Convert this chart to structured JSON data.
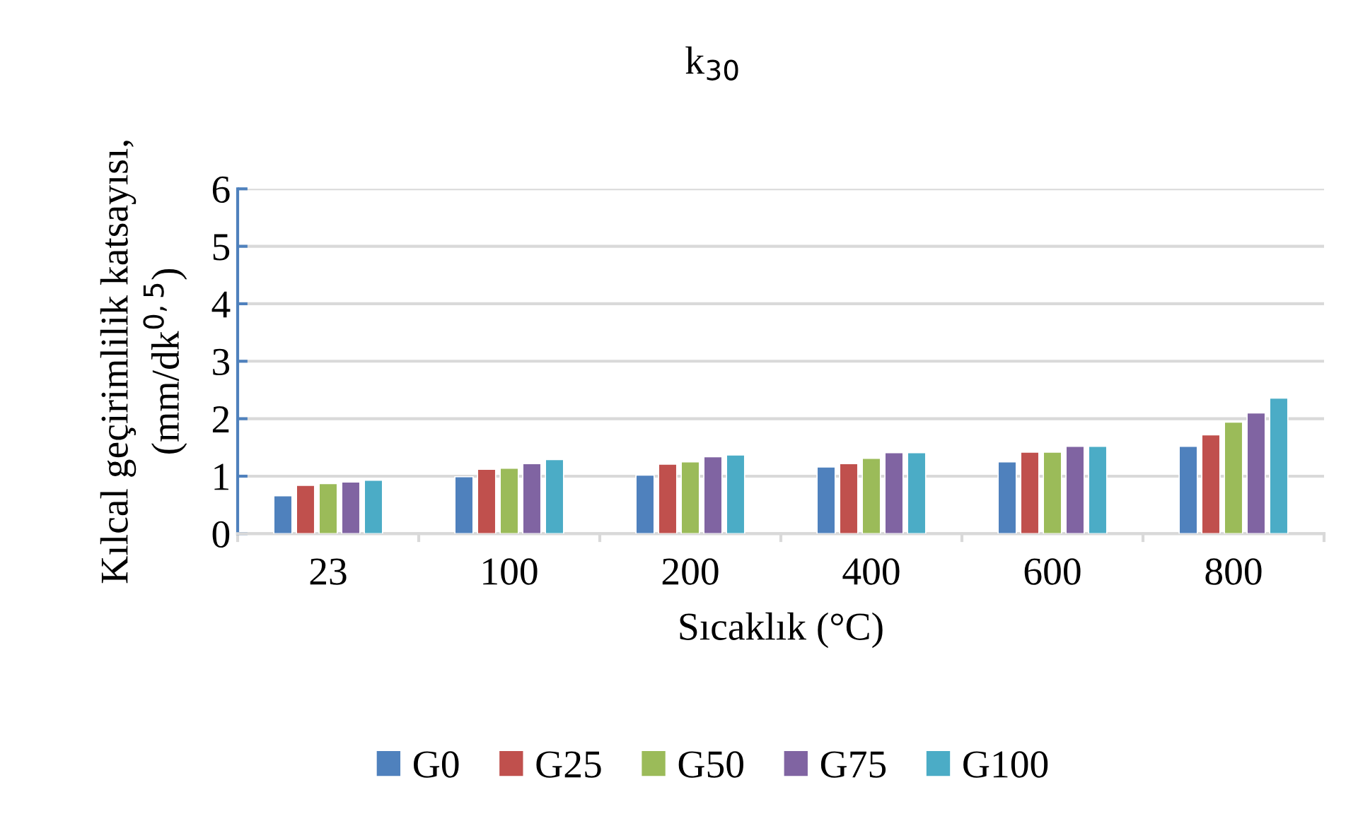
{
  "chart_data": {
    "type": "bar",
    "title": "k$_{30}$",
    "xlabel": "Sıcaklık (°C)",
    "ylabel": "Kılcal geçirimlilik katsayısı,\n(mm/dk$^{0,5}$)",
    "categories": [
      "23",
      "100",
      "200",
      "400",
      "600",
      "800"
    ],
    "series": [
      {
        "name": "G0",
        "color": "#4f81bd",
        "values": [
          0.66,
          0.99,
          1.02,
          1.16,
          1.25,
          1.52
        ]
      },
      {
        "name": "G25",
        "color": "#c0504d",
        "values": [
          0.84,
          1.12,
          1.21,
          1.22,
          1.42,
          1.72
        ]
      },
      {
        "name": "G50",
        "color": "#9bbb59",
        "values": [
          0.87,
          1.14,
          1.25,
          1.31,
          1.42,
          1.94
        ]
      },
      {
        "name": "G75",
        "color": "#8064a2",
        "values": [
          0.9,
          1.22,
          1.34,
          1.41,
          1.52,
          2.1
        ]
      },
      {
        "name": "G100",
        "color": "#4bacc6",
        "values": [
          0.93,
          1.29,
          1.37,
          1.41,
          1.52,
          2.36
        ]
      }
    ],
    "ylim": [
      0,
      6
    ],
    "yticks": [
      0,
      1,
      2,
      3,
      4,
      5,
      6
    ],
    "grid": "y",
    "legend": "bottom"
  }
}
